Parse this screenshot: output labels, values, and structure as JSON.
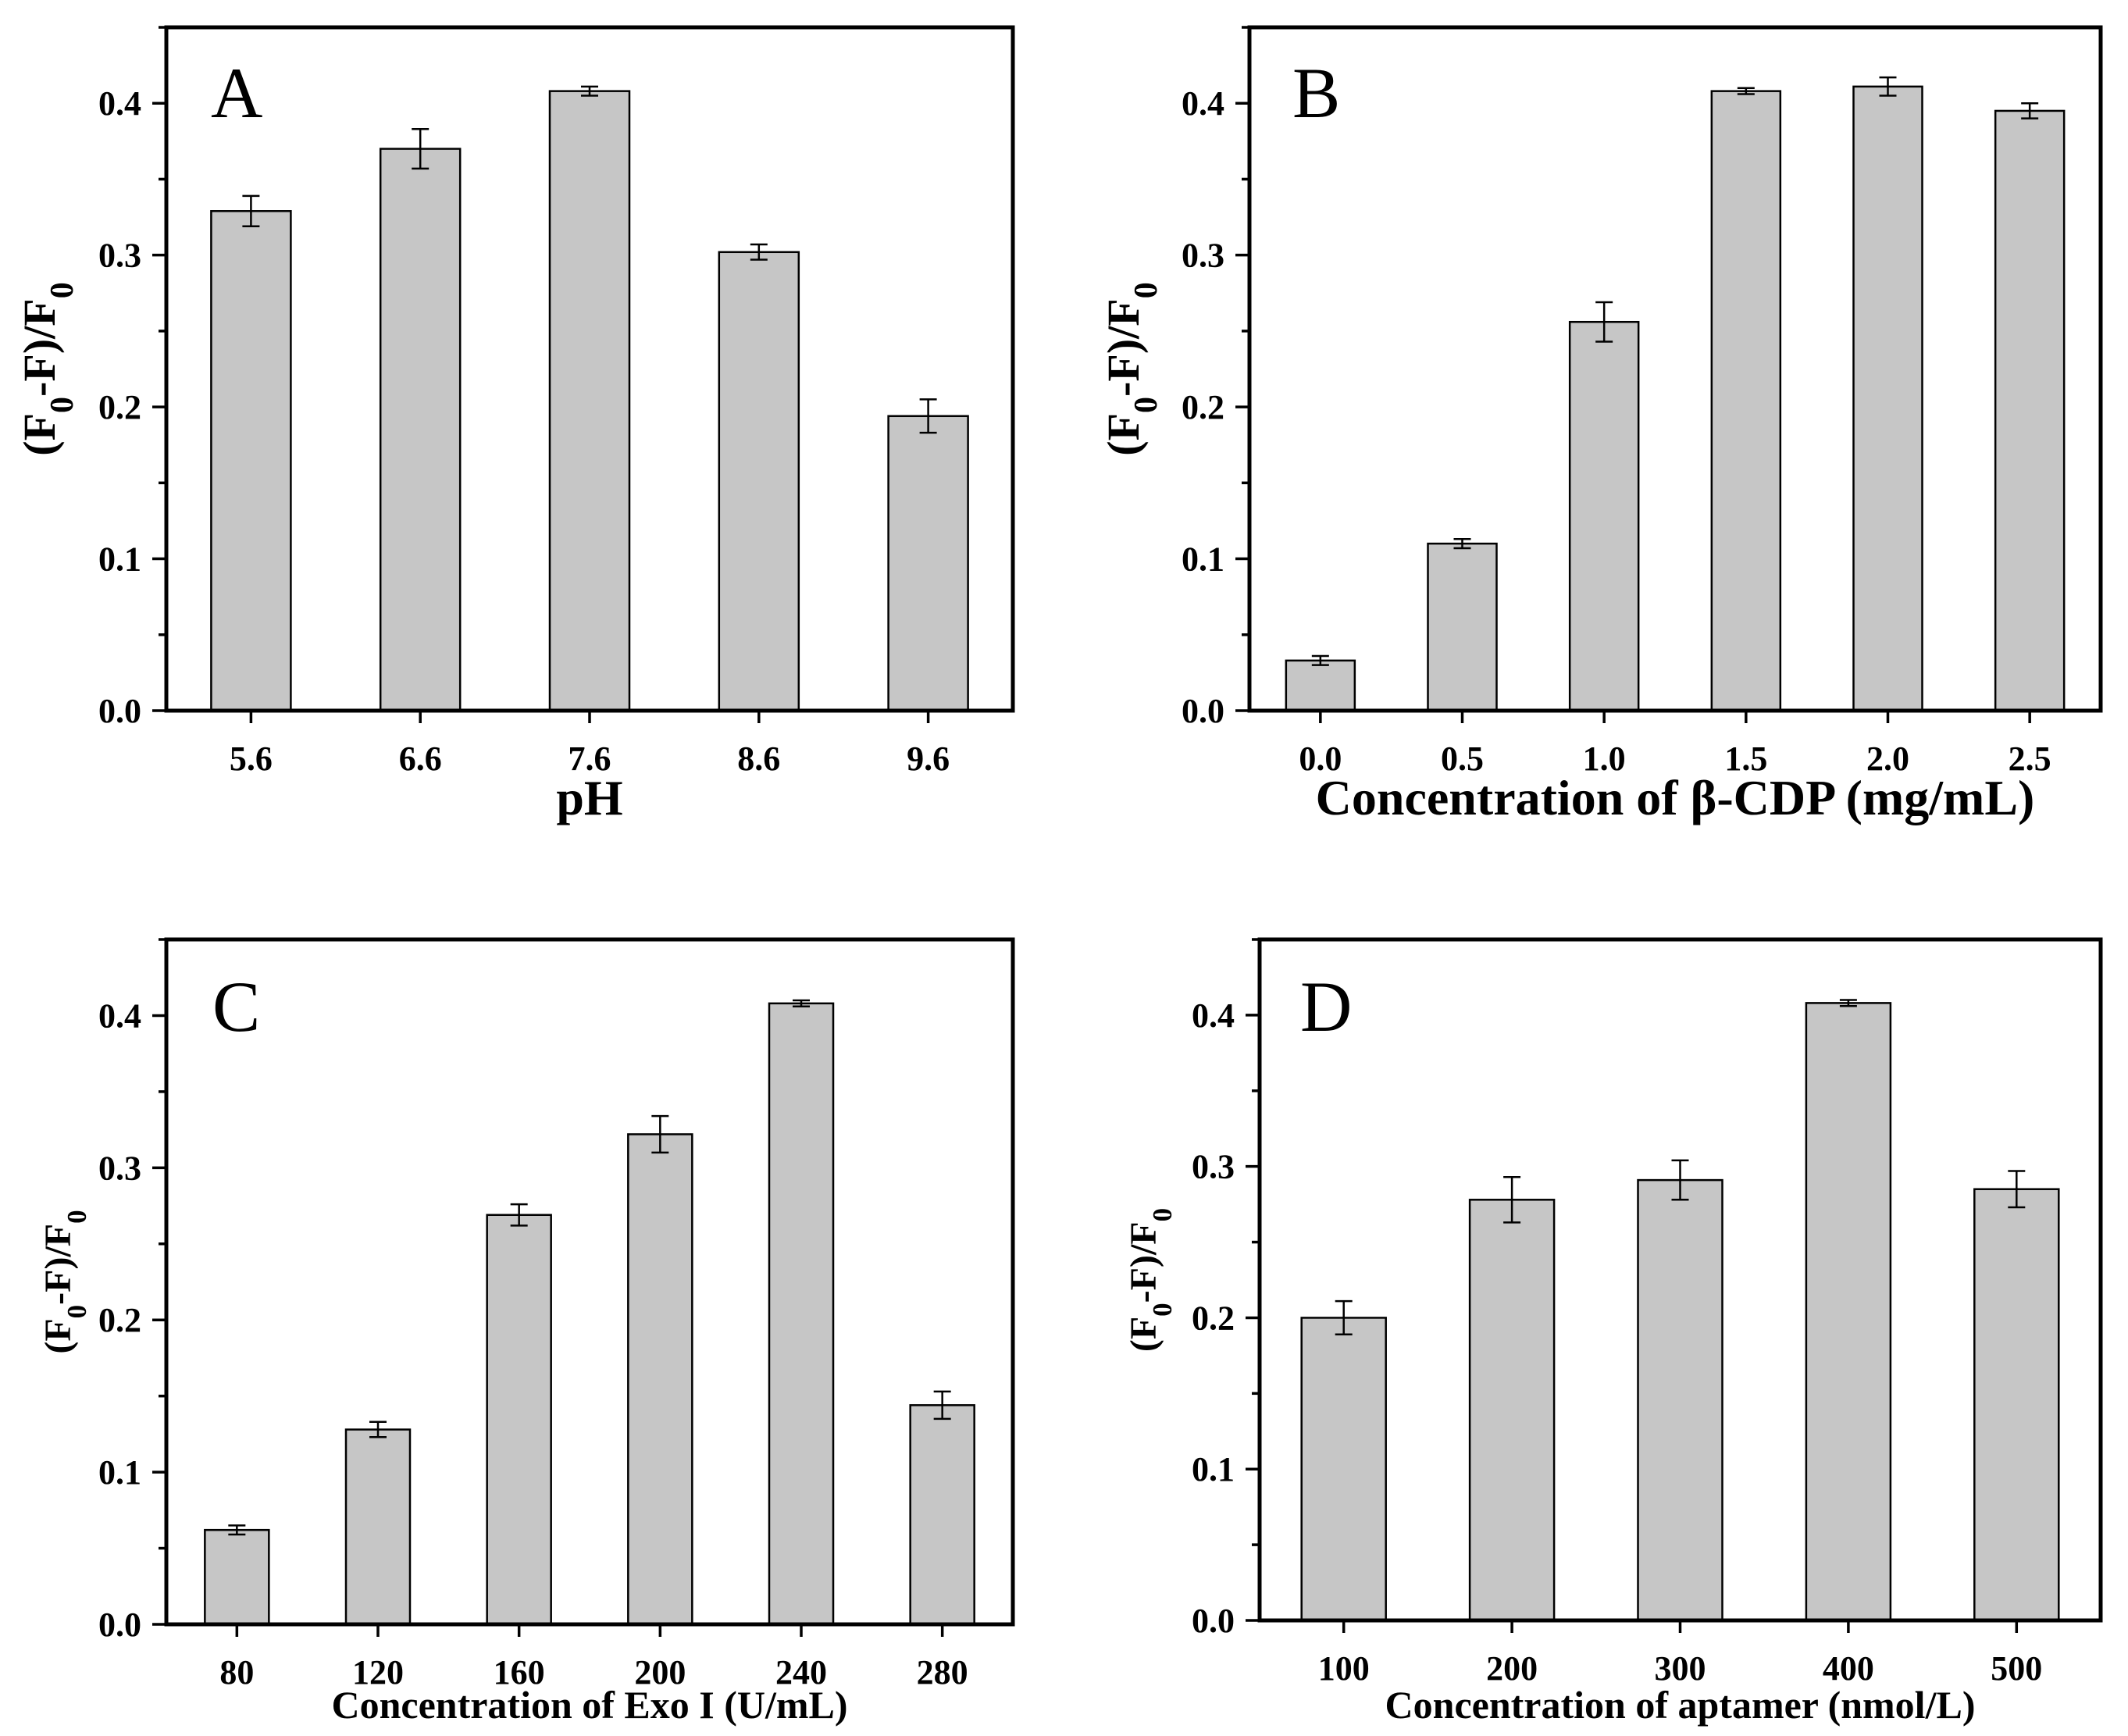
{
  "chart_data": [
    {
      "panel": "A",
      "type": "bar",
      "xlabel": "pH",
      "ylabel": "(F0-F)/F0",
      "ylim": [
        0,
        0.45
      ],
      "yticks": [
        "0.0",
        "0.1",
        "0.2",
        "0.3",
        "0.4"
      ],
      "categories": [
        "5.6",
        "6.6",
        "7.6",
        "8.6",
        "9.6"
      ],
      "values": [
        0.329,
        0.37,
        0.408,
        0.302,
        0.194
      ],
      "errors": [
        0.01,
        0.013,
        0.003,
        0.005,
        0.011
      ]
    },
    {
      "panel": "B",
      "type": "bar",
      "xlabel": "Concentration of  β-CDP (mg/mL)",
      "ylabel": "(F0-F)/F0",
      "ylim": [
        0,
        0.45
      ],
      "yticks": [
        "0.0",
        "0.1",
        "0.2",
        "0.3",
        "0.4"
      ],
      "categories": [
        "0.0",
        "0.5",
        "1.0",
        "1.5",
        "2.0",
        "2.5"
      ],
      "values": [
        0.033,
        0.11,
        0.256,
        0.408,
        0.411,
        0.395
      ],
      "errors": [
        0.003,
        0.003,
        0.013,
        0.002,
        0.006,
        0.005
      ]
    },
    {
      "panel": "C",
      "type": "bar",
      "xlabel": "Concentration of  Exo I (U/mL)",
      "ylabel": "(F0-F)/F0",
      "ylim": [
        0,
        0.45
      ],
      "yticks": [
        "0.0",
        "0.1",
        "0.2",
        "0.3",
        "0.4"
      ],
      "categories": [
        "80",
        "120",
        "160",
        "200",
        "240",
        "280"
      ],
      "values": [
        0.062,
        0.128,
        0.269,
        0.322,
        0.408,
        0.144
      ],
      "errors": [
        0.003,
        0.005,
        0.007,
        0.012,
        0.002,
        0.009
      ]
    },
    {
      "panel": "D",
      "type": "bar",
      "xlabel": "Concentration of  aptamer (nmol/L)",
      "ylabel": "(F0-F)/F0",
      "ylim": [
        0,
        0.45
      ],
      "yticks": [
        "0.0",
        "0.1",
        "0.2",
        "0.3",
        "0.4"
      ],
      "categories": [
        "100",
        "200",
        "300",
        "400",
        "500"
      ],
      "values": [
        0.2,
        0.278,
        0.291,
        0.408,
        0.285
      ],
      "errors": [
        0.011,
        0.015,
        0.013,
        0.002,
        0.012
      ]
    }
  ]
}
